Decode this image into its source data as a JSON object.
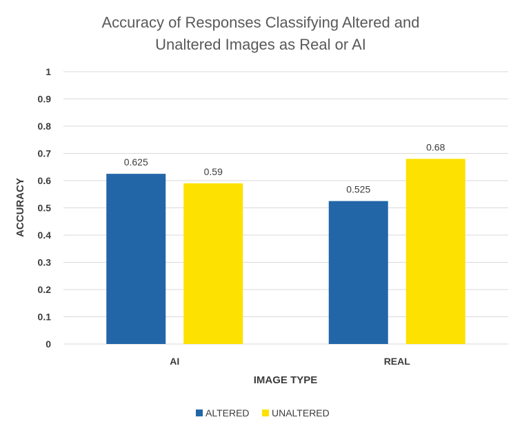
{
  "chart_data": {
    "type": "bar",
    "title_lines": [
      "Accuracy of Responses Classifying Altered and",
      "Unaltered Images as Real or AI"
    ],
    "categories": [
      "AI",
      "REAL"
    ],
    "series": [
      {
        "name": "ALTERED",
        "values": [
          0.625,
          0.525
        ],
        "labels": [
          "0.625",
          "0.525"
        ],
        "color": "#2366a8"
      },
      {
        "name": "UNALTERED",
        "values": [
          0.59,
          0.68
        ],
        "labels": [
          "0.59",
          "0.68"
        ],
        "color": "#fde100"
      }
    ],
    "xlabel": "IMAGE TYPE",
    "ylabel": "ACCURACY",
    "ylim": [
      0,
      1
    ],
    "yticks": [
      "0",
      "0.1",
      "0.2",
      "0.3",
      "0.4",
      "0.5",
      "0.6",
      "0.7",
      "0.8",
      "0.9",
      "1"
    ],
    "grid": true,
    "legend_position": "bottom"
  }
}
